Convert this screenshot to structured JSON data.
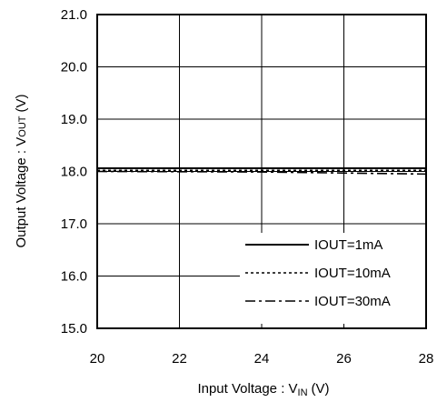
{
  "chart_data": {
    "type": "line",
    "title": "",
    "xlabel": {
      "main": "Input Voltage : V",
      "sub": "IN",
      "unit": "(V)"
    },
    "ylabel": {
      "main": "Output Voltage : V",
      "sub": "OUT",
      "unit": "(V)"
    },
    "xlim": [
      20,
      28
    ],
    "ylim": [
      15,
      21
    ],
    "xticks": [
      20,
      22,
      24,
      26,
      28
    ],
    "xtick_labels": [
      "20",
      "22",
      "24",
      "26",
      "28"
    ],
    "yticks": [
      15,
      16,
      17,
      18,
      19,
      20,
      21
    ],
    "ytick_labels": [
      "15.0",
      "16.0",
      "17.0",
      "18.0",
      "19.0",
      "20.0",
      "21.0"
    ],
    "grid": true,
    "legend_position": "bottom-right",
    "series": [
      {
        "name": "IOUT=1mA",
        "style": "solid",
        "x": [
          20,
          28
        ],
        "y": [
          18.06,
          18.06
        ]
      },
      {
        "name": "IOUT=10mA",
        "style": "dotted",
        "x": [
          20,
          28
        ],
        "y": [
          18.02,
          18.02
        ]
      },
      {
        "name": "IOUT=30mA",
        "style": "dash-dot",
        "x": [
          20,
          24,
          28
        ],
        "y": [
          18.0,
          17.99,
          17.95
        ]
      }
    ]
  }
}
